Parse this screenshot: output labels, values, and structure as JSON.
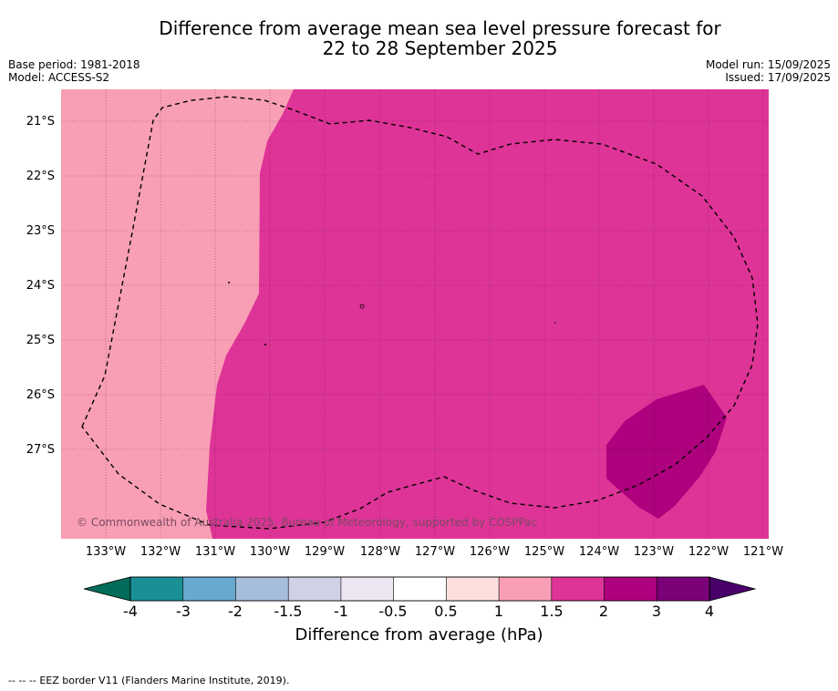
{
  "title": {
    "line1": "Difference from average mean sea level pressure forecast for",
    "line2": "22 to 28 September 2025"
  },
  "meta_left": {
    "base_period": "Base period: 1981-2018",
    "model": "Model: ACCESS-S2"
  },
  "meta_right": {
    "model_run": "Model run: 15/09/2025",
    "issued": "Issued: 17/09/2025"
  },
  "map": {
    "latitude_labels": [
      "21°S",
      "22°S",
      "23°S",
      "24°S",
      "25°S",
      "26°S",
      "27°S"
    ],
    "longitude_labels": [
      "133°W",
      "132°W",
      "131°W",
      "130°W",
      "129°W",
      "128°W",
      "127°W",
      "126°W",
      "125°W",
      "124°W",
      "123°W",
      "122°W",
      "121°W"
    ],
    "copyright": "© Commonwealth of Australia 2025, Bureau of Meteorology, supported by COSPPac",
    "region_colors": {
      "range_1_to_1_5": "#f99fb5",
      "range_1_5_to_2": "#de3497",
      "range_2_to_3": "#ae017e"
    }
  },
  "colorbar": {
    "ticks": [
      "-4",
      "-3",
      "-2",
      "-1.5",
      "-1",
      "-0.5",
      "0.5",
      "1",
      "1.5",
      "2",
      "3",
      "4"
    ],
    "colors": [
      "#1a9096",
      "#67a9cf",
      "#a6bddb",
      "#d0d1e6",
      "#ece7f2",
      "#ffffff",
      "#fde0dd",
      "#f99fb5",
      "#de3497",
      "#ae017e",
      "#7a0177"
    ],
    "under_color": "#016c59",
    "over_color": "#49006a",
    "label": "Difference from average (hPa)"
  },
  "footer": {
    "legend_symbol": "--  --  --",
    "legend_text": "EEZ border V11 (Flanders Marine Institute, 2019)."
  }
}
